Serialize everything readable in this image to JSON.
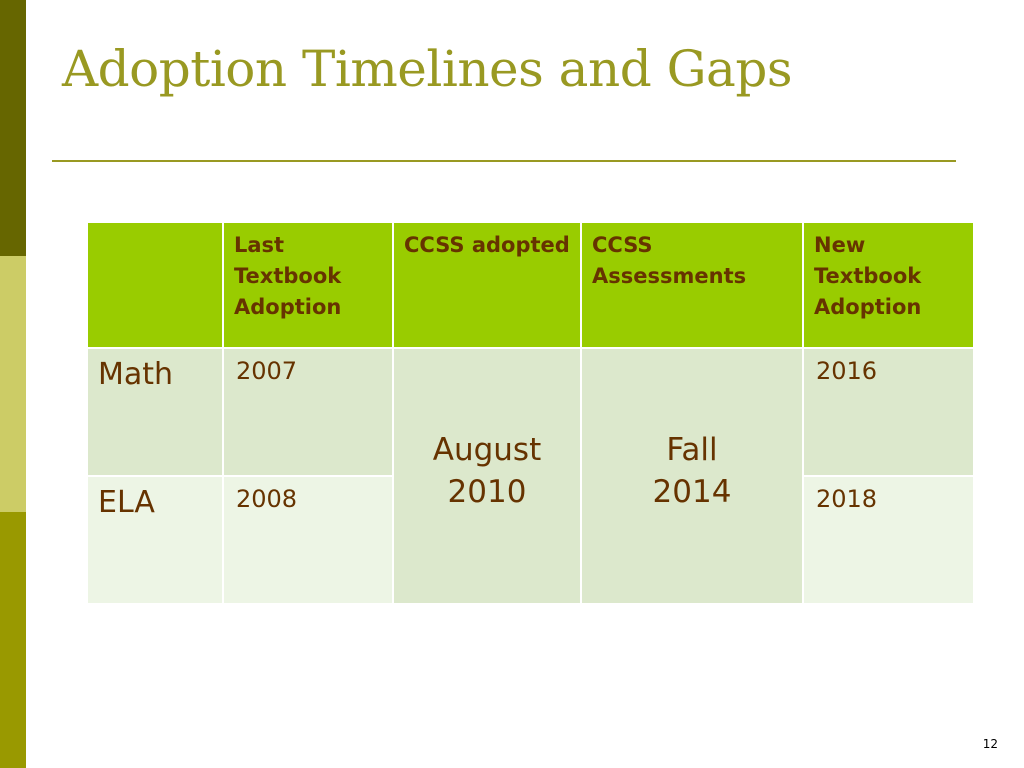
{
  "slide": {
    "title": "Adoption Timelines and Gaps",
    "number": "12"
  },
  "table": {
    "headers": [
      "",
      "Last Textbook Adoption",
      "CCSS adopted",
      "CCSS Assessments",
      "New Textbook Adoption"
    ],
    "rows": [
      {
        "subject": "Math",
        "last_adoption": "2007",
        "new_adoption": "2016"
      },
      {
        "subject": "ELA",
        "last_adoption": "2008",
        "new_adoption": "2018"
      }
    ],
    "ccss_adopted": {
      "line1": "August",
      "line2": "2010"
    },
    "ccss_assessments": {
      "line1": "Fall",
      "line2": "2014"
    }
  },
  "colors": {
    "title": "#999922",
    "header_bg": "#99cc00",
    "header_text": "#663300",
    "row_dark": "#dce8cc",
    "row_light": "#edf5e5",
    "sidebar": [
      "#666600",
      "#cccc66",
      "#999900"
    ]
  }
}
